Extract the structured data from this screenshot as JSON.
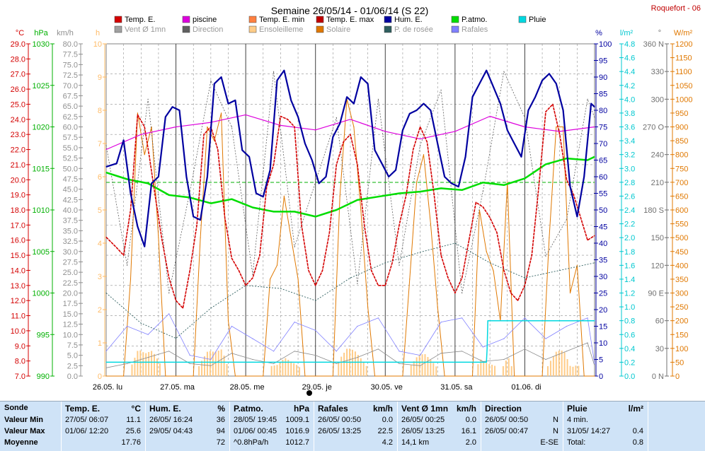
{
  "title": "Semaine 26/05/14 - 01/06/14 (S 22)",
  "station": "Roquefort - 06",
  "colors": {
    "temp_e": "#d40000",
    "piscine": "#dd00dd",
    "temp_min": "#ff8040",
    "temp_max": "#c00000",
    "hum_e": "#0000a0",
    "p_atmo": "#00dd00",
    "pluie": "#00d8e0",
    "vent": "#8a8a8a",
    "direction": "#606060",
    "ensoleillement": "#ffcc88",
    "solaire": "#e07800",
    "rosee": "#2f5f5f",
    "rafales": "#8080ff"
  },
  "legend": [
    {
      "label": "Temp. E.",
      "color": "#d40000"
    },
    {
      "label": "piscine",
      "color": "#dd00dd"
    },
    {
      "label": "Temp. E. min",
      "color": "#ff8040"
    },
    {
      "label": "Temp. E. max",
      "color": "#c00000"
    },
    {
      "label": "Hum. E.",
      "color": "#0000a0"
    },
    {
      "label": "P.atmo.",
      "color": "#00dd00"
    },
    {
      "label": "Pluie",
      "color": "#00d8e0"
    },
    {
      "label": "Vent Ø 1mn",
      "color": "#a0a0a0"
    },
    {
      "label": "Direction",
      "color": "#606060"
    },
    {
      "label": "Ensoleilleme",
      "color": "#ffcc88"
    },
    {
      "label": "Solaire",
      "color": "#e07800"
    },
    {
      "label": "P. de rosée",
      "color": "#2f5f5f"
    },
    {
      "label": "Rafales",
      "color": "#8080ff"
    }
  ],
  "axes": {
    "temp": {
      "unit": "°C",
      "min": 7.0,
      "max": 29.0,
      "step": 1.0,
      "color": "#d40000"
    },
    "press": {
      "unit": "hPa",
      "min": 990,
      "max": 1030,
      "step": 5,
      "color": "#00b000"
    },
    "wind": {
      "unit": "km/h",
      "min": 0.0,
      "max": 80.0,
      "step": 2.5,
      "color": "#909090"
    },
    "sun_h": {
      "unit": "h",
      "min": 0,
      "max": 10,
      "step": 1,
      "color": "#ffbb66"
    },
    "hum": {
      "unit": "%",
      "min": 0,
      "max": 100,
      "step": 5,
      "color": "#0000a0"
    },
    "rain": {
      "unit": "l/m²",
      "min": 0.0,
      "max": 4.8,
      "step": 0.2,
      "color": "#00c8d0"
    },
    "dir": {
      "unit": "°",
      "min": 0,
      "max": 360,
      "step": 30,
      "color": "#707070",
      "cardinal": {
        "90": "E",
        "180": "S",
        "270": "O",
        "360": "N",
        "0": "N"
      }
    },
    "solar": {
      "unit": "W/m²",
      "min": 0,
      "max": 1200,
      "step": 50,
      "color": "#e07800"
    }
  },
  "x_days": [
    "26.05. lu",
    "27.05. ma",
    "28.05. me",
    "29.05. je",
    "30.05. ve",
    "31.05. sa",
    "01.06. di"
  ],
  "chart_data": {
    "type": "line",
    "x_unit": "day index (0 = 26.05 00:00, 7 = 02.06 00:00)",
    "series": [
      {
        "name": "Temp. E.",
        "unit": "°C",
        "x": [
          0,
          0.15,
          0.25,
          0.35,
          0.45,
          0.55,
          0.62,
          0.7,
          0.8,
          0.9,
          1.0,
          1.1,
          1.2,
          1.3,
          1.4,
          1.5,
          1.6,
          1.7,
          1.8,
          1.9,
          2.0,
          2.1,
          2.2,
          2.3,
          2.4,
          2.5,
          2.6,
          2.7,
          2.8,
          2.9,
          3.0,
          3.1,
          3.2,
          3.3,
          3.4,
          3.5,
          3.6,
          3.7,
          3.8,
          3.9,
          4.0,
          4.1,
          4.2,
          4.3,
          4.4,
          4.5,
          4.6,
          4.7,
          4.8,
          4.9,
          5.0,
          5.1,
          5.2,
          5.3,
          5.4,
          5.5,
          5.6,
          5.7,
          5.8,
          5.9,
          6.0,
          6.1,
          6.2,
          6.3,
          6.4,
          6.5,
          6.6,
          6.7,
          6.8,
          6.9,
          7.0
        ],
        "y": [
          16.2,
          15.5,
          15.0,
          18.0,
          24.3,
          23.5,
          21.5,
          19.0,
          16.0,
          13.5,
          12.0,
          11.5,
          14.0,
          17.0,
          23.0,
          23.5,
          22.0,
          17.5,
          14.8,
          14.0,
          13.0,
          13.5,
          15.0,
          19.5,
          21.0,
          24.2,
          24.0,
          23.5,
          17.0,
          14.0,
          13.0,
          14.0,
          16.5,
          21.0,
          22.5,
          23.0,
          21.0,
          17.0,
          14.0,
          13.0,
          13.0,
          14.5,
          17.0,
          19.0,
          22.0,
          23.5,
          22.5,
          19.0,
          15.0,
          13.5,
          12.5,
          13.5,
          16.0,
          18.5,
          18.2,
          17.5,
          16.5,
          14.0,
          12.5,
          12.0,
          13.0,
          15.0,
          19.5,
          24.5,
          25.0,
          23.0,
          20.0,
          19.0,
          17.5,
          16.0,
          16.3
        ]
      },
      {
        "name": "piscine",
        "unit": "°C",
        "x": [
          0,
          0.5,
          1.0,
          1.5,
          2.0,
          2.5,
          3.0,
          3.5,
          4.0,
          4.5,
          5.0,
          5.5,
          6.0,
          6.5,
          7.0
        ],
        "y": [
          22.0,
          23.0,
          23.5,
          23.8,
          24.3,
          23.6,
          23.3,
          24.0,
          23.2,
          22.7,
          23.2,
          24.2,
          23.5,
          23.2,
          23.5
        ]
      },
      {
        "name": "Hum. E.",
        "unit": "%",
        "x": [
          0,
          0.15,
          0.25,
          0.35,
          0.45,
          0.55,
          0.65,
          0.75,
          0.85,
          0.95,
          1.05,
          1.15,
          1.25,
          1.35,
          1.45,
          1.55,
          1.65,
          1.75,
          1.85,
          1.95,
          2.05,
          2.15,
          2.25,
          2.35,
          2.45,
          2.55,
          2.65,
          2.75,
          2.85,
          2.95,
          3.05,
          3.15,
          3.25,
          3.35,
          3.45,
          3.55,
          3.65,
          3.75,
          3.85,
          3.95,
          4.05,
          4.15,
          4.25,
          4.35,
          4.45,
          4.55,
          4.65,
          4.75,
          4.85,
          4.95,
          5.05,
          5.15,
          5.25,
          5.35,
          5.45,
          5.55,
          5.65,
          5.75,
          5.85,
          5.95,
          6.05,
          6.15,
          6.25,
          6.35,
          6.45,
          6.55,
          6.65,
          6.75,
          6.85,
          6.95,
          7.0
        ],
        "y": [
          63,
          64,
          71,
          55,
          45,
          39,
          58,
          60,
          78,
          81,
          80,
          60,
          48,
          47,
          60,
          88,
          90,
          82,
          83,
          68,
          66,
          55,
          54,
          62,
          89,
          92,
          83,
          78,
          70,
          65,
          58,
          60,
          72,
          76,
          84,
          82,
          90,
          88,
          68,
          64,
          60,
          62,
          74,
          79,
          80,
          82,
          80,
          70,
          60,
          58,
          57,
          66,
          84,
          88,
          92,
          87,
          82,
          74,
          70,
          66,
          80,
          84,
          89,
          91,
          88,
          80,
          57,
          48,
          60,
          82,
          81
        ]
      },
      {
        "name": "P.atmo.",
        "unit": "hPa",
        "x": [
          0,
          0.3,
          0.6,
          0.9,
          1.2,
          1.5,
          1.8,
          2.1,
          2.4,
          2.7,
          3.0,
          3.3,
          3.6,
          3.9,
          4.2,
          4.5,
          4.8,
          5.1,
          5.4,
          5.7,
          6.0,
          6.3,
          6.6,
          6.9,
          7.0
        ],
        "y": [
          1014.5,
          1013.7,
          1013.2,
          1011.8,
          1011.5,
          1010.8,
          1011.3,
          1010.3,
          1009.8,
          1009.8,
          1009.2,
          1010.0,
          1011.2,
          1011.6,
          1012.0,
          1012.2,
          1012.6,
          1012.4,
          1013.3,
          1013.0,
          1013.8,
          1015.5,
          1016.2,
          1016.0,
          1016.4
        ]
      },
      {
        "name": "P. de rosée",
        "unit": "°C",
        "x": [
          0,
          0.5,
          1.0,
          1.5,
          2.0,
          2.5,
          3.0,
          3.5,
          4.0,
          4.5,
          5.0,
          5.5,
          6.0,
          6.5,
          7.0
        ],
        "y": [
          12.5,
          10.5,
          9.5,
          11.5,
          13.0,
          12.8,
          12.0,
          13.5,
          14.5,
          15.2,
          15.8,
          14.5,
          13.5,
          14.0,
          14.5
        ]
      },
      {
        "name": "Solaire",
        "unit": "W/m²",
        "x": [
          0,
          0.25,
          0.35,
          0.45,
          0.55,
          0.65,
          0.75,
          0.85,
          1.0,
          1.25,
          1.35,
          1.45,
          1.55,
          1.65,
          1.75,
          1.85,
          2.0,
          2.25,
          2.35,
          2.45,
          2.55,
          2.65,
          2.75,
          2.85,
          3.0,
          3.25,
          3.35,
          3.45,
          3.55,
          3.65,
          3.75,
          3.85,
          4.0,
          4.25,
          4.35,
          4.45,
          4.55,
          4.65,
          4.75,
          4.85,
          5.0,
          5.25,
          5.35,
          5.45,
          5.55,
          5.65,
          5.75,
          5.85,
          6.0,
          6.25,
          6.35,
          6.45,
          6.55,
          6.65,
          6.75,
          6.85,
          7.0
        ],
        "y": [
          0,
          0,
          350,
          950,
          800,
          900,
          500,
          0,
          0,
          0,
          500,
          900,
          850,
          950,
          200,
          0,
          0,
          0,
          350,
          400,
          650,
          500,
          350,
          0,
          0,
          0,
          650,
          1000,
          900,
          600,
          250,
          0,
          0,
          0,
          350,
          700,
          800,
          550,
          250,
          0,
          0,
          0,
          600,
          450,
          380,
          200,
          700,
          0,
          0,
          0,
          500,
          900,
          900,
          300,
          400,
          0,
          0
        ]
      },
      {
        "name": "Vent Ø 1mn",
        "unit": "km/h",
        "x": [
          0,
          0.3,
          0.6,
          0.9,
          1.2,
          1.5,
          1.8,
          2.1,
          2.4,
          2.7,
          3.0,
          3.3,
          3.6,
          3.9,
          4.2,
          4.5,
          4.8,
          5.1,
          5.4,
          5.7,
          6.0,
          6.3,
          6.6,
          6.9,
          7.0
        ],
        "y": [
          2.0,
          3.0,
          4.5,
          6.0,
          3.0,
          2.5,
          5.5,
          4.0,
          3.0,
          6.0,
          5.0,
          3.0,
          4.5,
          6.5,
          3.0,
          2.5,
          5.5,
          6.0,
          3.5,
          4.0,
          6.5,
          4.0,
          6.0,
          8.0,
          2.5
        ]
      },
      {
        "name": "Rafales",
        "unit": "km/h",
        "x": [
          0,
          0.3,
          0.6,
          0.9,
          1.2,
          1.5,
          1.8,
          2.1,
          2.4,
          2.7,
          3.0,
          3.3,
          3.6,
          3.9,
          4.2,
          4.5,
          4.8,
          5.1,
          5.4,
          5.7,
          6.0,
          6.3,
          6.6,
          6.9,
          7.0
        ],
        "y": [
          6.0,
          12.0,
          10.0,
          15.0,
          5.0,
          4.0,
          12.0,
          9.0,
          6.0,
          13.0,
          11.0,
          6.0,
          12.0,
          14.0,
          6.0,
          5.0,
          13.0,
          14.0,
          7.0,
          9.0,
          14.0,
          9.0,
          12.0,
          14.0,
          3.0
        ]
      },
      {
        "name": "Direction",
        "unit": "°",
        "x": [
          0,
          0.3,
          0.6,
          0.9,
          1.2,
          1.5,
          1.8,
          2.1,
          2.4,
          2.7,
          3.0,
          3.3,
          3.6,
          3.9,
          4.2,
          4.5,
          4.8,
          5.1,
          5.4,
          5.7,
          6.0,
          6.3,
          6.6,
          6.9,
          7.0
        ],
        "y": [
          250,
          120,
          300,
          90,
          200,
          320,
          270,
          110,
          330,
          140,
          210,
          280,
          100,
          300,
          120,
          250,
          310,
          90,
          200,
          330,
          280,
          130,
          170,
          300,
          280
        ]
      },
      {
        "name": "Pluie",
        "unit": "l/m²",
        "x": [
          0,
          5.45,
          5.46,
          5.47,
          7.0
        ],
        "y": [
          0.2,
          0.2,
          0.4,
          0.8,
          0.8
        ]
      }
    ]
  },
  "stats": {
    "row_labels": {
      "header": "Sonde",
      "min": "Valeur Min",
      "max": "Valeur Max",
      "avg": "Moyenne"
    },
    "columns": [
      {
        "name": "Temp. E.",
        "unit": "°C",
        "min_date": "27/05/ 06:07",
        "min_val": "11.1",
        "max_date": "01/06/ 12:20",
        "max_val": "25.6",
        "avg_label": "",
        "avg_val": "17.76"
      },
      {
        "name": "Hum. E.",
        "unit": "%",
        "min_date": "26/05/ 16:24",
        "min_val": "36",
        "max_date": "29/05/ 04:43",
        "max_val": "94",
        "avg_label": "",
        "avg_val": "72"
      },
      {
        "name": "P.atmo.",
        "unit": "hPa",
        "min_date": "28/05/ 19:45",
        "min_val": "1009.1",
        "max_date": "01/06/ 00:45",
        "max_val": "1016.9",
        "avg_label": "^0.8hPa/h",
        "avg_val": "1012.7"
      },
      {
        "name": "Rafales",
        "unit": "km/h",
        "min_date": "26/05/ 00:50",
        "min_val": "0.0",
        "max_date": "26/05/ 13:25",
        "max_val": "22.5",
        "avg_label": "",
        "avg_val": "4.2"
      },
      {
        "name": "Vent Ø 1mn",
        "unit": "km/h",
        "min_date": "26/05/ 00:25",
        "min_val": "0.0",
        "max_date": "26/05/ 13:25",
        "max_val": "16.1",
        "avg_label": "14,1 km",
        "avg_val": "2.0"
      },
      {
        "name": "Direction",
        "unit": "",
        "min_date": "26/05/ 00:50",
        "min_val": "N",
        "max_date": "26/05/ 00:47",
        "max_val": "N",
        "avg_label": "",
        "avg_val": "E-SE"
      },
      {
        "name": "Pluie",
        "unit": "l/m²",
        "min_date": "4 min.",
        "min_val": "",
        "max_date": "31/05/ 14:27",
        "max_val": "0.4",
        "avg_label": "Total:",
        "avg_val": "0.8"
      }
    ]
  }
}
